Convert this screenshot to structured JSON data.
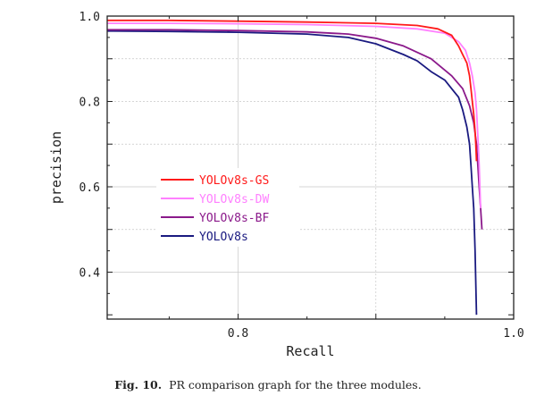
{
  "caption": {
    "label": "Fig. 10.",
    "text": "PR comparison graph for the three modules."
  },
  "chart_data": {
    "type": "line",
    "title": "",
    "xlabel": "Recall",
    "ylabel": "precision",
    "xlim": [
      0.705,
      1.0
    ],
    "ylim": [
      0.29,
      1.0
    ],
    "xticks": [
      0.8,
      1.0
    ],
    "xtick_labels": [
      "0.8",
      "1.0"
    ],
    "yticks": [
      0.4,
      0.6,
      0.8,
      1.0
    ],
    "ytick_labels": [
      "0.4",
      "0.6",
      "0.8",
      "1.0"
    ],
    "grid": true,
    "legend_position": "left-middle",
    "series": [
      {
        "name": "YOLOv8s-GS",
        "color": "#ff1a1a",
        "x": [
          0.705,
          0.75,
          0.8,
          0.85,
          0.9,
          0.93,
          0.945,
          0.955,
          0.96,
          0.963,
          0.966,
          0.968,
          0.969,
          0.97,
          0.971,
          0.972,
          0.9725,
          0.973
        ],
        "y": [
          0.99,
          0.99,
          0.988,
          0.986,
          0.983,
          0.978,
          0.97,
          0.955,
          0.93,
          0.91,
          0.89,
          0.86,
          0.83,
          0.8,
          0.77,
          0.73,
          0.7,
          0.66
        ]
      },
      {
        "name": "YOLOv8s-DW",
        "color": "#ff80ff",
        "x": [
          0.705,
          0.75,
          0.8,
          0.85,
          0.9,
          0.93,
          0.95,
          0.96,
          0.965,
          0.968,
          0.97,
          0.972,
          0.973,
          0.974,
          0.975,
          0.976
        ],
        "y": [
          0.983,
          0.983,
          0.982,
          0.98,
          0.976,
          0.97,
          0.96,
          0.94,
          0.92,
          0.89,
          0.86,
          0.82,
          0.78,
          0.72,
          0.65,
          0.55
        ]
      },
      {
        "name": "YOLOv8s-BF",
        "color": "#8b1a8b",
        "x": [
          0.705,
          0.75,
          0.8,
          0.85,
          0.88,
          0.9,
          0.92,
          0.94,
          0.955,
          0.963,
          0.968,
          0.971,
          0.973,
          0.974,
          0.975,
          0.976,
          0.977
        ],
        "y": [
          0.968,
          0.968,
          0.966,
          0.963,
          0.958,
          0.948,
          0.93,
          0.9,
          0.86,
          0.83,
          0.79,
          0.75,
          0.7,
          0.65,
          0.6,
          0.55,
          0.5
        ]
      },
      {
        "name": "YOLOv8s",
        "color": "#1a1a80",
        "x": [
          0.705,
          0.75,
          0.8,
          0.85,
          0.88,
          0.9,
          0.92,
          0.93,
          0.94,
          0.95,
          0.955,
          0.96,
          0.963,
          0.966,
          0.968,
          0.969,
          0.97,
          0.971,
          0.972,
          0.973
        ],
        "y": [
          0.965,
          0.964,
          0.962,
          0.958,
          0.95,
          0.935,
          0.91,
          0.895,
          0.87,
          0.85,
          0.83,
          0.81,
          0.78,
          0.74,
          0.7,
          0.65,
          0.6,
          0.55,
          0.45,
          0.3
        ]
      }
    ]
  }
}
